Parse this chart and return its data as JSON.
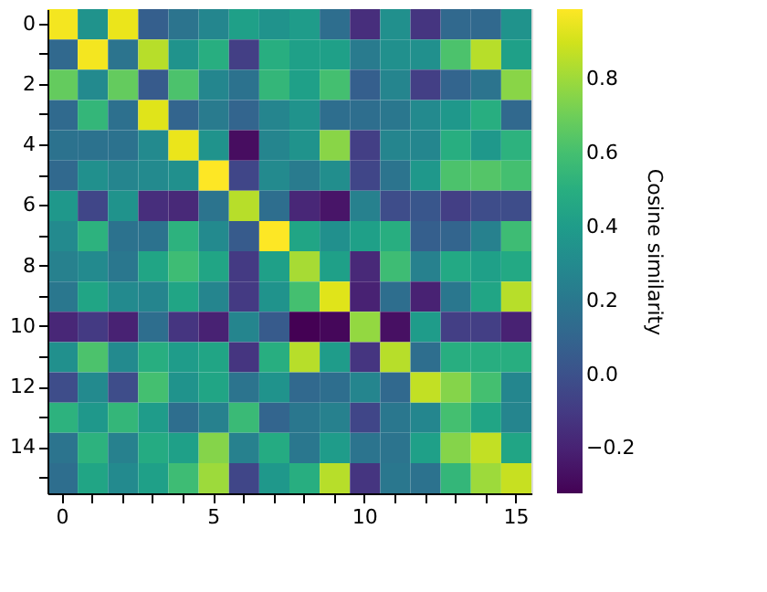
{
  "chart_data": {
    "type": "heatmap",
    "clabel": "Cosine similarity",
    "categories": [
      "0",
      null,
      null,
      null,
      null,
      "5",
      null,
      null,
      null,
      null,
      "10",
      null,
      null,
      null,
      null,
      "15"
    ],
    "y_categories": [
      "0",
      null,
      "2",
      null,
      "4",
      null,
      "6",
      null,
      "8",
      null,
      "10",
      null,
      "12",
      null,
      "14",
      null
    ],
    "cells": [
      [
        0.97,
        0.35,
        0.95,
        0.07,
        0.18,
        0.28,
        0.42,
        0.35,
        0.4,
        0.15,
        -0.15,
        0.33,
        -0.12,
        0.12,
        0.12,
        0.35
      ],
      [
        0.12,
        0.97,
        0.18,
        0.85,
        0.35,
        0.5,
        -0.08,
        0.5,
        0.42,
        0.42,
        0.22,
        0.33,
        0.33,
        0.62,
        0.85,
        0.42
      ],
      [
        0.68,
        0.3,
        0.68,
        0.05,
        0.62,
        0.28,
        0.17,
        0.55,
        0.42,
        0.6,
        0.07,
        0.27,
        -0.08,
        0.1,
        0.18,
        0.76
      ],
      [
        0.13,
        0.55,
        0.16,
        0.93,
        0.1,
        0.22,
        0.1,
        0.27,
        0.35,
        0.15,
        0.15,
        0.2,
        0.3,
        0.38,
        0.5,
        0.12
      ],
      [
        0.17,
        0.17,
        0.17,
        0.3,
        0.95,
        0.35,
        -0.28,
        0.27,
        0.35,
        0.76,
        -0.08,
        0.27,
        0.28,
        0.5,
        0.38,
        0.52
      ],
      [
        0.12,
        0.33,
        0.27,
        0.3,
        0.33,
        0.99,
        -0.05,
        0.3,
        0.22,
        0.32,
        -0.05,
        0.18,
        0.38,
        0.62,
        0.64,
        0.6
      ],
      [
        0.38,
        -0.05,
        0.35,
        -0.15,
        -0.17,
        0.18,
        0.85,
        0.15,
        -0.18,
        -0.25,
        0.25,
        -0.02,
        0.03,
        -0.08,
        -0.02,
        -0.02
      ],
      [
        0.3,
        0.52,
        0.17,
        0.17,
        0.52,
        0.3,
        0.05,
        0.99,
        0.45,
        0.33,
        0.42,
        0.5,
        0.07,
        0.1,
        0.25,
        0.58
      ],
      [
        0.25,
        0.3,
        0.2,
        0.45,
        0.58,
        0.45,
        -0.1,
        0.42,
        0.82,
        0.42,
        -0.17,
        0.58,
        0.25,
        0.47,
        0.42,
        0.47
      ],
      [
        0.2,
        0.45,
        0.3,
        0.27,
        0.45,
        0.27,
        -0.1,
        0.35,
        0.6,
        0.93,
        -0.2,
        0.15,
        -0.2,
        0.2,
        0.45,
        0.85
      ],
      [
        -0.18,
        -0.1,
        -0.2,
        0.15,
        -0.12,
        -0.2,
        0.27,
        0.05,
        -0.32,
        -0.3,
        0.78,
        -0.27,
        0.4,
        -0.08,
        -0.08,
        -0.2
      ],
      [
        0.33,
        0.62,
        0.3,
        0.5,
        0.4,
        0.45,
        -0.12,
        0.5,
        0.85,
        0.4,
        -0.12,
        0.85,
        0.15,
        0.5,
        0.5,
        0.5
      ],
      [
        -0.02,
        0.3,
        -0.02,
        0.6,
        0.35,
        0.45,
        0.18,
        0.35,
        0.12,
        0.15,
        0.27,
        0.12,
        0.87,
        0.75,
        0.6,
        0.28
      ],
      [
        0.52,
        0.38,
        0.55,
        0.4,
        0.15,
        0.25,
        0.57,
        0.1,
        0.2,
        0.25,
        -0.05,
        0.2,
        0.28,
        0.6,
        0.45,
        0.27
      ],
      [
        0.18,
        0.52,
        0.25,
        0.48,
        0.42,
        0.75,
        0.25,
        0.48,
        0.2,
        0.4,
        0.18,
        0.18,
        0.42,
        0.75,
        0.87,
        0.45
      ],
      [
        0.15,
        0.45,
        0.3,
        0.42,
        0.58,
        0.8,
        -0.05,
        0.38,
        0.5,
        0.85,
        -0.12,
        0.2,
        0.17,
        0.55,
        0.8,
        0.88
      ]
    ],
    "clim": [
      -0.32,
      0.99
    ],
    "cticks": [
      {
        "value": -0.2,
        "label": "−0.2"
      },
      {
        "value": 0,
        "label": "0.0"
      },
      0.2,
      0.4,
      0.6,
      0.8
    ]
  }
}
